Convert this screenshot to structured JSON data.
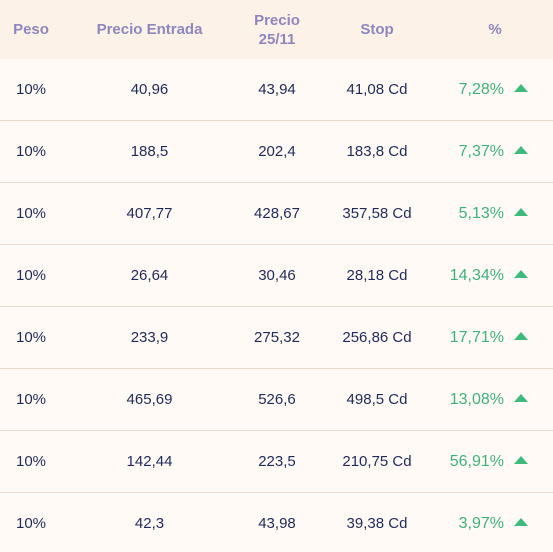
{
  "headers": {
    "peso": "Peso",
    "precio_entrada": "Precio Entrada",
    "precio_actual_line1": "Precio",
    "precio_actual_line2": "25/11",
    "stop": "Stop",
    "pct": "%"
  },
  "colors": {
    "header_text": "#8e87bf",
    "body_text": "#1f2a5a",
    "positive": "#3fb27a",
    "background": "#fffaf5",
    "header_bg": "#fdf2e8"
  },
  "rows": [
    {
      "peso": "10%",
      "entrada": "40,96",
      "precio": "43,94",
      "stop": "41,08 Cd",
      "pct": "7,28%",
      "trend_icon": "triangle-up-icon"
    },
    {
      "peso": "10%",
      "entrada": "188,5",
      "precio": "202,4",
      "stop": "183,8 Cd",
      "pct": "7,37%",
      "trend_icon": "triangle-up-icon"
    },
    {
      "peso": "10%",
      "entrada": "407,77",
      "precio": "428,67",
      "stop": "357,58 Cd",
      "pct": "5,13%",
      "trend_icon": "triangle-up-icon"
    },
    {
      "peso": "10%",
      "entrada": "26,64",
      "precio": "30,46",
      "stop": "28,18 Cd",
      "pct": "14,34%",
      "trend_icon": "triangle-up-icon"
    },
    {
      "peso": "10%",
      "entrada": "233,9",
      "precio": "275,32",
      "stop": "256,86 Cd",
      "pct": "17,71%",
      "trend_icon": "triangle-up-icon"
    },
    {
      "peso": "10%",
      "entrada": "465,69",
      "precio": "526,6",
      "stop": "498,5 Cd",
      "pct": "13,08%",
      "trend_icon": "triangle-up-icon"
    },
    {
      "peso": "10%",
      "entrada": "142,44",
      "precio": "223,5",
      "stop": "210,75 Cd",
      "pct": "56,91%",
      "trend_icon": "triangle-up-icon"
    },
    {
      "peso": "10%",
      "entrada": "42,3",
      "precio": "43,98",
      "stop": "39,38 Cd",
      "pct": "3,97%",
      "trend_icon": "triangle-up-icon"
    }
  ]
}
